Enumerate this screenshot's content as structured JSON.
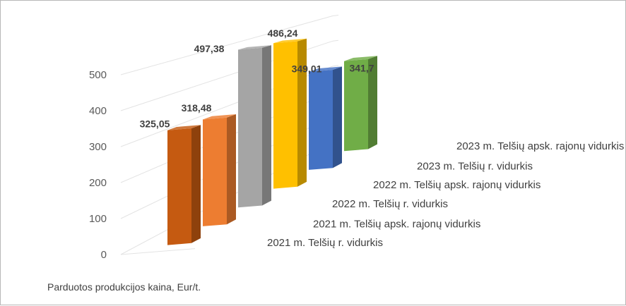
{
  "chart_data": {
    "type": "bar",
    "style": "3d-column",
    "categories": [
      "2021 m. Telšių r. vidurkis",
      "2021 m. Telšių apsk. rajonų vidurkis",
      "2022 m. Telšių  r. vidurkis",
      "2022 m. Telšių apsk. rajonų vidurkis",
      "2023 m. Telšių r. vidurkis",
      "2023 m. Telšių apsk. rajonų vidurkis"
    ],
    "values": [
      325.05,
      318.48,
      497.38,
      486.24,
      349.01,
      341.7
    ],
    "data_labels": [
      "325,05",
      "318,48",
      "497,38",
      "486,24",
      "349,01",
      "341,7"
    ],
    "colors": [
      "#c55a11",
      "#ed7d31",
      "#a5a5a5",
      "#ffc000",
      "#4472c4",
      "#70ad47"
    ],
    "yticks": [
      "0",
      "100",
      "200",
      "300",
      "400",
      "500"
    ],
    "ylim": [
      0,
      500
    ],
    "grid": true,
    "caption": "Parduotos produkcijos kaina, Eur/t."
  }
}
